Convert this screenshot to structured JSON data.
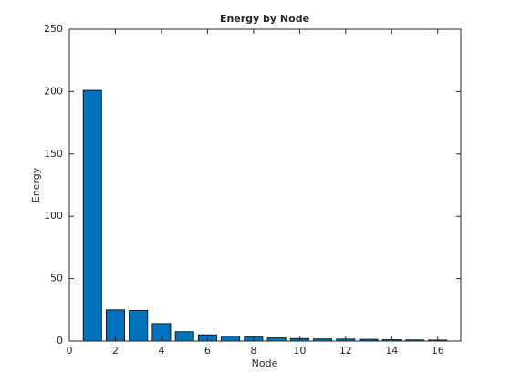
{
  "chart_data": {
    "type": "bar",
    "title": "Energy by Node",
    "xlabel": "Node",
    "ylabel": "Energy",
    "x": [
      1,
      2,
      3,
      4,
      5,
      6,
      7,
      8,
      9,
      10,
      11,
      12,
      13,
      14,
      15,
      16
    ],
    "values": [
      201,
      25,
      24.5,
      14,
      7.5,
      5,
      4,
      3.2,
      2.5,
      2,
      1.7,
      1.6,
      1.4,
      1.1,
      0.9,
      0.8
    ],
    "color": "#0072bd",
    "xlim": [
      0,
      17
    ],
    "xticks": [
      0,
      2,
      4,
      6,
      8,
      10,
      12,
      14,
      16
    ],
    "ylim": [
      0,
      250
    ],
    "yticks": [
      0,
      50,
      100,
      150,
      200,
      250
    ]
  }
}
